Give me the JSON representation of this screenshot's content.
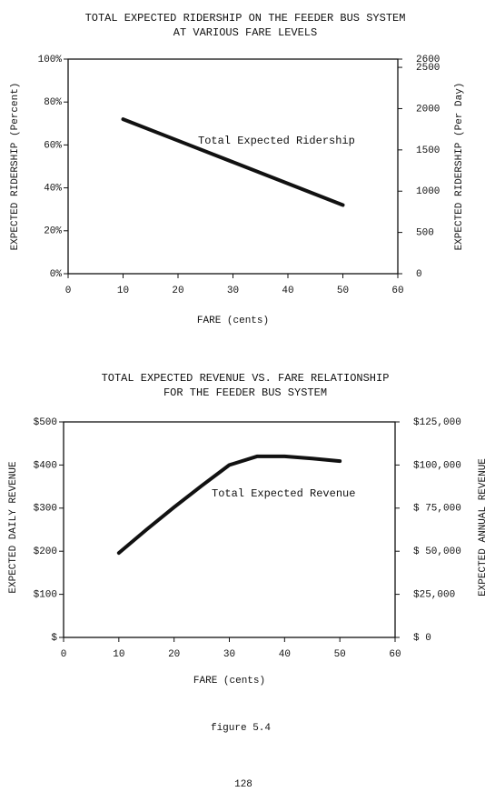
{
  "chart_data": [
    {
      "type": "line",
      "title": [
        "TOTAL EXPECTED RIDERSHIP ON THE FEEDER BUS SYSTEM",
        "AT VARIOUS FARE LEVELS"
      ],
      "x_label": "FARE (cents)",
      "y_label": "EXPECTED RIDERSHIP (Percent)",
      "y2_label": "EXPECTED RIDERSHIP (Per Day)",
      "x": [
        10,
        20,
        30,
        40,
        50
      ],
      "series": [
        {
          "name": "Total Expected Ridership",
          "color": "#111111",
          "values": [
            72,
            62,
            52,
            42,
            32
          ]
        }
      ],
      "xlim": [
        0,
        60
      ],
      "xticks": [
        0,
        10,
        20,
        30,
        40,
        50,
        60
      ],
      "ylim": [
        0,
        100
      ],
      "yticks": [
        {
          "value": 0,
          "label": "0%"
        },
        {
          "value": 20,
          "label": "20%"
        },
        {
          "value": 40,
          "label": "40%"
        },
        {
          "value": 60,
          "label": "60%"
        },
        {
          "value": 80,
          "label": "80%"
        },
        {
          "value": 100,
          "label": "100%"
        }
      ],
      "y2lim": [
        0,
        2600
      ],
      "y2ticks": [
        0,
        500,
        1000,
        1500,
        2000,
        2500,
        2600
      ]
    },
    {
      "type": "line",
      "title": [
        "TOTAL EXPECTED REVENUE VS. FARE RELATIONSHIP",
        "FOR THE FEEDER BUS SYSTEM"
      ],
      "x_label": "FARE (cents)",
      "y_label": "EXPECTED DAILY REVENUE",
      "y2_label": "EXPECTED ANNUAL REVENUE",
      "x": [
        10,
        15,
        20,
        25,
        30,
        35,
        40,
        45,
        50
      ],
      "series": [
        {
          "name": "Total Expected Revenue",
          "color": "#111111",
          "values": [
            196,
            250,
            302,
            352,
            400,
            420,
            420,
            415,
            409
          ]
        }
      ],
      "xlim": [
        0,
        60
      ],
      "xticks": [
        0,
        10,
        20,
        30,
        40,
        50,
        60
      ],
      "ylim": [
        0,
        500
      ],
      "yticks": [
        {
          "value": 0,
          "label": "$"
        },
        {
          "value": 100,
          "label": "$100"
        },
        {
          "value": 200,
          "label": "$200"
        },
        {
          "value": 300,
          "label": "$300"
        },
        {
          "value": 400,
          "label": "$400"
        },
        {
          "value": 500,
          "label": "$500"
        }
      ],
      "y2lim": [
        0,
        125000
      ],
      "y2ticks": [
        {
          "value": 0,
          "label": "$ 0"
        },
        {
          "value": 25000,
          "label": "$25,000"
        },
        {
          "value": 50000,
          "label": "$ 50,000"
        },
        {
          "value": 75000,
          "label": "$ 75,000"
        },
        {
          "value": 100000,
          "label": "$100,000"
        },
        {
          "value": 125000,
          "label": "$125,000"
        }
      ]
    }
  ],
  "caption": "figure 5.4",
  "page_number": "128"
}
